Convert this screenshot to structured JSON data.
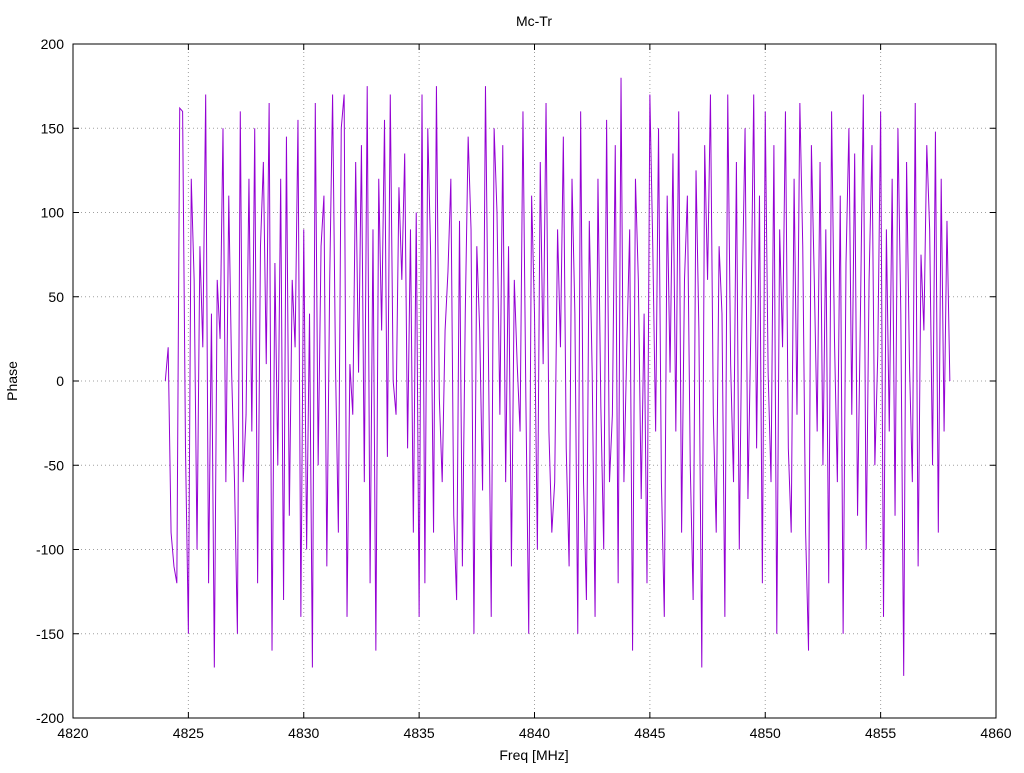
{
  "chart_data": {
    "type": "line",
    "title": "Mc-Tr",
    "xlabel": "Freq [MHz]",
    "ylabel": "Phase",
    "xlim": [
      4820,
      4860
    ],
    "ylim": [
      -200,
      200
    ],
    "x_ticks": [
      4820,
      4825,
      4830,
      4835,
      4840,
      4845,
      4850,
      4855,
      4860
    ],
    "y_ticks": [
      -200,
      -150,
      -100,
      -50,
      0,
      50,
      100,
      150,
      200
    ],
    "grid": true,
    "legend": "none",
    "series": [
      {
        "color": "#9400d3",
        "x_start": 4824.0,
        "x_step": 0.125,
        "values": [
          0,
          20,
          -90,
          -110,
          -120,
          162,
          160,
          -40,
          -150,
          120,
          60,
          -100,
          80,
          20,
          170,
          -120,
          40,
          -170,
          60,
          25,
          150,
          -60,
          110,
          5,
          -60,
          -150,
          160,
          -60,
          -20,
          120,
          -30,
          150,
          -120,
          80,
          130,
          10,
          165,
          -160,
          70,
          -50,
          120,
          -130,
          145,
          -80,
          60,
          20,
          155,
          -140,
          90,
          -100,
          40,
          -170,
          165,
          -50,
          80,
          110,
          -110,
          60,
          170,
          10,
          -90,
          150,
          170,
          -140,
          10,
          -20,
          130,
          5,
          140,
          -60,
          175,
          -120,
          90,
          -160,
          120,
          30,
          155,
          -45,
          170,
          0,
          -20,
          115,
          60,
          135,
          -40,
          90,
          -90,
          100,
          -140,
          170,
          -120,
          150,
          75,
          -90,
          175,
          -10,
          -60,
          30,
          65,
          120,
          -80,
          -130,
          95,
          -110,
          40,
          145,
          90,
          -150,
          80,
          30,
          -65,
          175,
          20,
          -140,
          150,
          100,
          -20,
          140,
          -60,
          80,
          -110,
          60,
          10,
          -30,
          160,
          -10,
          -150,
          110,
          40,
          -100,
          130,
          10,
          165,
          -30,
          -90,
          -60,
          90,
          20,
          145,
          -40,
          -110,
          120,
          40,
          -150,
          160,
          -60,
          -130,
          95,
          5,
          -140,
          120,
          -15,
          -100,
          155,
          -60,
          -20,
          140,
          -120,
          180,
          -60,
          20,
          90,
          -160,
          120,
          60,
          -70,
          40,
          -120,
          170,
          80,
          -30,
          150,
          -60,
          -140,
          110,
          5,
          135,
          -30,
          160,
          -90,
          60,
          110,
          -50,
          -130,
          125,
          30,
          -170,
          140,
          60,
          170,
          -20,
          -90,
          80,
          40,
          -140,
          170,
          10,
          -60,
          130,
          -100,
          50,
          150,
          -70,
          30,
          170,
          -40,
          110,
          -120,
          160,
          5,
          -60,
          140,
          -150,
          90,
          20,
          160,
          -40,
          -90,
          120,
          -20,
          165,
          80,
          -90,
          -160,
          140,
          60,
          -30,
          130,
          -50,
          90,
          -120,
          160,
          25,
          -60,
          110,
          -150,
          70,
          150,
          -20,
          135,
          -80,
          40,
          170,
          -100,
          60,
          140,
          -50,
          15,
          160,
          -140,
          90,
          -30,
          120,
          -80,
          150,
          40,
          -175,
          130,
          10,
          -60,
          165,
          -110,
          75,
          30,
          140,
          90,
          -50,
          148,
          -90,
          120,
          -30,
          95,
          0
        ]
      }
    ]
  }
}
